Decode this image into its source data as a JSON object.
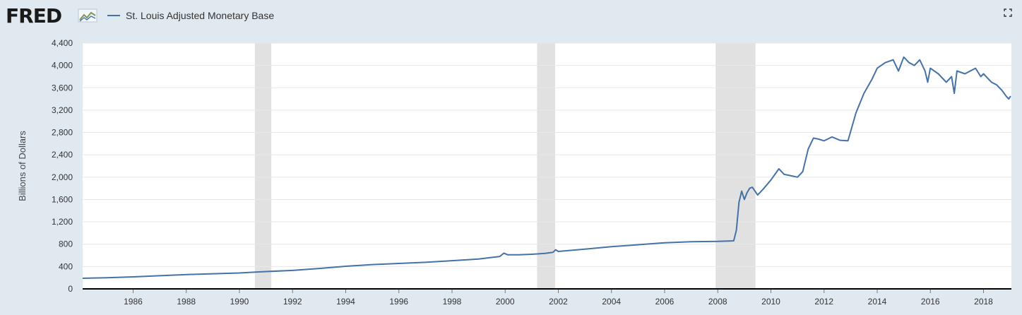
{
  "header": {
    "logo_text": "FRED",
    "series_label": "St. Louis Adjusted Monetary Base"
  },
  "colors": {
    "background": "#e1e9f0",
    "plot": "#ffffff",
    "line": "#4572a7",
    "recession": "#e1e1e1",
    "grid": "#e8e8e8"
  },
  "chart_data": {
    "type": "line",
    "ylabel": "Billions of Dollars",
    "xlabel": "",
    "ylim": [
      0,
      4400
    ],
    "xlim": [
      1984.1,
      2019.05
    ],
    "y_ticks": [
      0,
      400,
      800,
      1200,
      1600,
      2000,
      2400,
      2800,
      3200,
      3600,
      4000,
      4400
    ],
    "y_tick_labels": [
      "0",
      "400",
      "800",
      "1,200",
      "1,600",
      "2,000",
      "2,400",
      "2,800",
      "3,200",
      "3,600",
      "4,000",
      "4,400"
    ],
    "x_ticks": [
      1986,
      1988,
      1990,
      1992,
      1994,
      1996,
      1998,
      2000,
      2002,
      2004,
      2006,
      2008,
      2010,
      2012,
      2014,
      2016,
      2018
    ],
    "x_tick_labels": [
      "1986",
      "1988",
      "1990",
      "1992",
      "1994",
      "1996",
      "1998",
      "2000",
      "2002",
      "2004",
      "2006",
      "2008",
      "2010",
      "2012",
      "2014",
      "2016",
      "2018"
    ],
    "grid": "horizontal",
    "recessions": [
      [
        1990.58,
        1991.2
      ],
      [
        2001.2,
        2001.88
      ],
      [
        2007.92,
        2009.42
      ]
    ],
    "series": [
      {
        "name": "St. Louis Adjusted Monetary Base",
        "x": [
          1984.1,
          1985,
          1986,
          1987,
          1988,
          1989,
          1990,
          1990.6,
          1991,
          1992,
          1993,
          1994,
          1995,
          1996,
          1997,
          1998,
          1999,
          1999.8,
          1999.95,
          2000.1,
          2000.5,
          2001,
          2001.5,
          2001.8,
          2001.9,
          2002,
          2003,
          2004,
          2005,
          2006,
          2007,
          2008,
          2008.6,
          2008.7,
          2008.8,
          2008.9,
          2009.0,
          2009.1,
          2009.2,
          2009.3,
          2009.5,
          2009.7,
          2010,
          2010.3,
          2010.5,
          2010.7,
          2011,
          2011.2,
          2011.4,
          2011.6,
          2011.8,
          2012,
          2012.3,
          2012.6,
          2012.9,
          2013.2,
          2013.5,
          2013.8,
          2014,
          2014.3,
          2014.6,
          2014.8,
          2015,
          2015.2,
          2015.4,
          2015.6,
          2015.8,
          2015.9,
          2016,
          2016.3,
          2016.6,
          2016.8,
          2016.9,
          2017,
          2017.3,
          2017.5,
          2017.7,
          2017.9,
          2018,
          2018.3,
          2018.5,
          2018.7,
          2018.85,
          2018.95,
          2019.02
        ],
        "values": [
          190,
          200,
          215,
          235,
          255,
          270,
          285,
          300,
          310,
          330,
          365,
          405,
          435,
          455,
          475,
          505,
          535,
          580,
          640,
          610,
          610,
          620,
          635,
          655,
          700,
          670,
          710,
          755,
          790,
          825,
          845,
          850,
          860,
          1050,
          1550,
          1750,
          1600,
          1720,
          1800,
          1820,
          1680,
          1780,
          1950,
          2150,
          2050,
          2030,
          2000,
          2100,
          2500,
          2700,
          2680,
          2650,
          2720,
          2660,
          2650,
          3150,
          3500,
          3750,
          3950,
          4050,
          4100,
          3900,
          4150,
          4050,
          4000,
          4100,
          3900,
          3700,
          3950,
          3850,
          3700,
          3800,
          3500,
          3900,
          3850,
          3900,
          3950,
          3800,
          3850,
          3700,
          3650,
          3550,
          3450,
          3400,
          3450
        ]
      }
    ]
  }
}
